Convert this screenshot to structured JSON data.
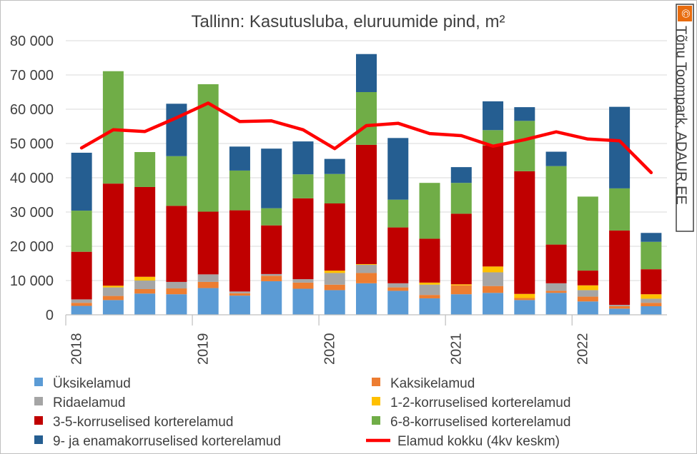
{
  "chart_data": {
    "type": "bar",
    "title": "Tallinn: Kasutusluba, eluruumide pind, m²",
    "credit": "Tõnu Toompark, ADAUR.EE",
    "credit_mark": "©",
    "ylim": [
      0,
      80000
    ],
    "yticks": [
      0,
      10000,
      20000,
      30000,
      40000,
      50000,
      60000,
      70000,
      80000
    ],
    "ytick_labels": [
      "0",
      "10 000",
      "20 000",
      "30 000",
      "40 000",
      "50 000",
      "60 000",
      "70 000",
      "80 000"
    ],
    "year_labels": [
      "2018",
      "2019",
      "2020",
      "2021",
      "2022"
    ],
    "categories": [
      "2018 Q1",
      "2018 Q2",
      "2018 Q3",
      "2018 Q4",
      "2019 Q1",
      "2019 Q2",
      "2019 Q3",
      "2019 Q4",
      "2020 Q1",
      "2020 Q2",
      "2020 Q3",
      "2020 Q4",
      "2021 Q1",
      "2021 Q2",
      "2021 Q3",
      "2021 Q4",
      "2022 Q1",
      "2022 Q2",
      "2022 Q3"
    ],
    "grid": true,
    "legend_position": "bottom",
    "series": [
      {
        "name": "Üksikelamud",
        "color": "#5b9bd5",
        "values": [
          2600,
          4300,
          6200,
          6000,
          7800,
          5600,
          9800,
          7600,
          7200,
          9200,
          7000,
          4800,
          6000,
          6400,
          4300,
          6400,
          3900,
          1800,
          2500
        ]
      },
      {
        "name": "Kaksikelamud",
        "color": "#ed7d31",
        "values": [
          900,
          1200,
          1300,
          1700,
          1800,
          700,
          1600,
          1800,
          1600,
          3000,
          1000,
          1000,
          2600,
          2000,
          600,
          600,
          1400,
          700,
          1000
        ]
      },
      {
        "name": "Ridaelamud",
        "color": "#a5a5a5",
        "values": [
          1000,
          2500,
          2500,
          1900,
          2200,
          500,
          500,
          1000,
          3400,
          2400,
          1200,
          3000,
          0,
          4000,
          0,
          2200,
          1900,
          400,
          1200
        ]
      },
      {
        "name": "1-2-korruselised korterelamud",
        "color": "#ffc000",
        "values": [
          0,
          500,
          1100,
          0,
          0,
          0,
          0,
          0,
          700,
          200,
          0,
          600,
          300,
          1700,
          1200,
          0,
          1400,
          0,
          1300
        ]
      },
      {
        "name": "3-5-korruselised korterelamud",
        "color": "#c00000",
        "values": [
          13900,
          29800,
          26200,
          22200,
          18300,
          23700,
          14200,
          23600,
          19600,
          34800,
          16300,
          12800,
          20600,
          35300,
          35800,
          11300,
          4300,
          21700,
          7300
        ]
      },
      {
        "name": "6-8-korruselised korterelamud",
        "color": "#70ad47",
        "values": [
          12000,
          32800,
          10200,
          14500,
          37200,
          11600,
          5000,
          7000,
          8600,
          15400,
          8100,
          16300,
          9000,
          4500,
          14700,
          22900,
          21600,
          12300,
          8000
        ]
      },
      {
        "name": "9- ja enamakorruselised korterelamud",
        "color": "#255e91",
        "values": [
          16900,
          0,
          0,
          15300,
          0,
          7000,
          17400,
          9600,
          4400,
          11100,
          18000,
          0,
          4600,
          8400,
          4000,
          4200,
          0,
          23800,
          2600
        ]
      }
    ],
    "line": {
      "name": "Elamud kokku (4kv keskm)",
      "color": "#ff0000",
      "values": [
        48700,
        54000,
        53500,
        57500,
        61800,
        56400,
        56600,
        54000,
        48500,
        55200,
        55900,
        52900,
        52300,
        49200,
        51100,
        53400,
        51300,
        50800,
        41500
      ]
    }
  }
}
